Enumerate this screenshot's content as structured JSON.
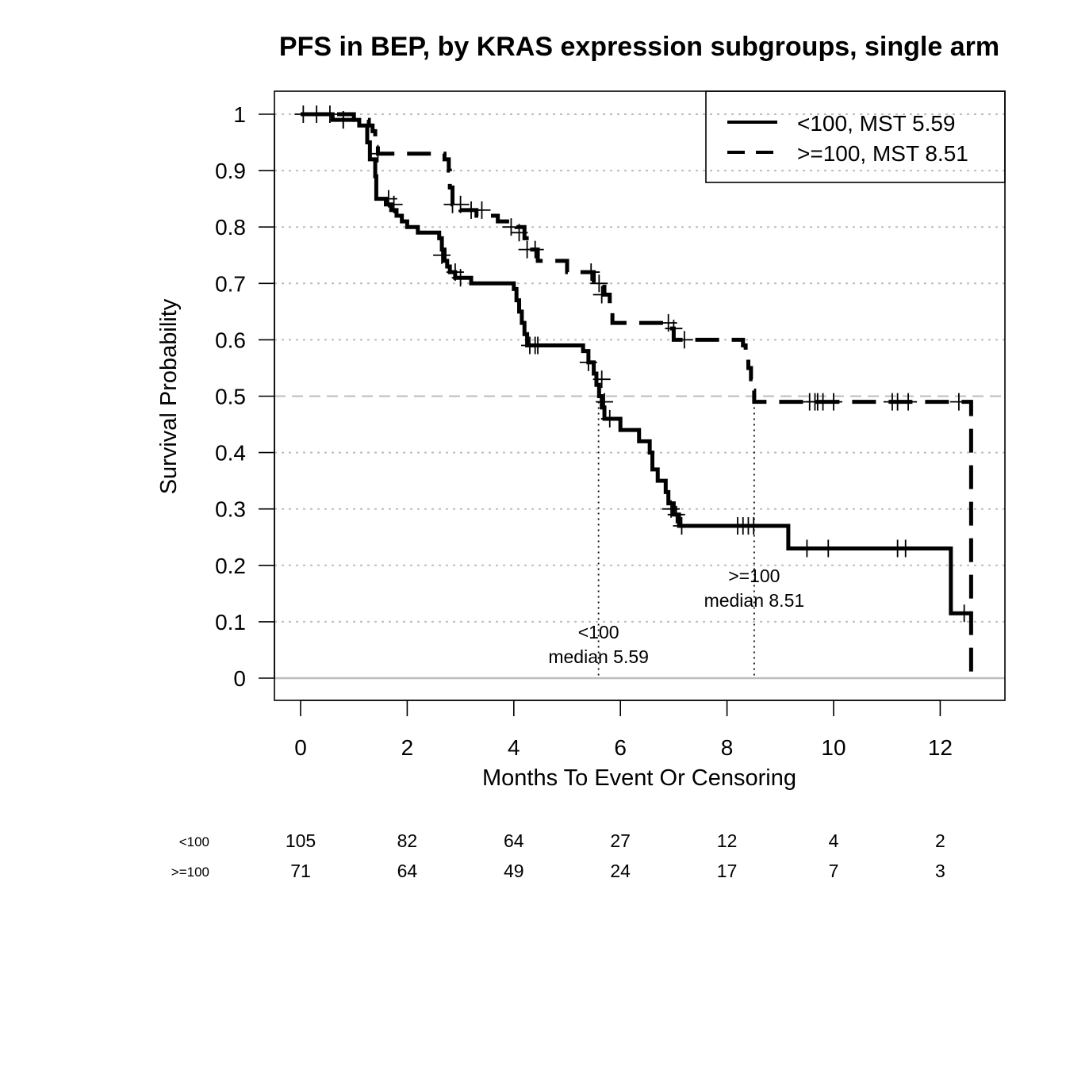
{
  "chart_data": {
    "type": "line",
    "title": "PFS in BEP, by KRAS expression subgroups, single arm",
    "xlabel": "Months To Event Or Censoring",
    "ylabel": "Survival Probability",
    "xlim": [
      -0.5,
      13.2
    ],
    "ylim": [
      -0.04,
      1.04
    ],
    "x_ticks": [
      0,
      2,
      4,
      6,
      8,
      10,
      12
    ],
    "y_ticks": [
      0,
      0.1,
      0.2,
      0.3,
      0.4,
      0.5,
      0.6,
      0.7,
      0.8,
      0.9,
      1
    ],
    "y_tick_labels": [
      "0",
      "0.1",
      "0.2",
      "0.3",
      "0.4",
      "0.5",
      "0.6",
      "0.7",
      "0.8",
      "0.9",
      "1"
    ],
    "grid": "horizontal dotted",
    "legend_position": "top-right",
    "series": [
      {
        "name": "<100, MST 5.59",
        "line_style": "solid",
        "steps": [
          [
            0,
            1.0
          ],
          [
            0.6,
            0.99
          ],
          [
            1.1,
            0.98
          ],
          [
            1.25,
            0.95
          ],
          [
            1.3,
            0.92
          ],
          [
            1.4,
            0.89
          ],
          [
            1.42,
            0.85
          ],
          [
            1.6,
            0.84
          ],
          [
            1.7,
            0.83
          ],
          [
            1.8,
            0.82
          ],
          [
            1.9,
            0.81
          ],
          [
            2.0,
            0.8
          ],
          [
            2.2,
            0.79
          ],
          [
            2.5,
            0.79
          ],
          [
            2.6,
            0.78
          ],
          [
            2.65,
            0.76
          ],
          [
            2.7,
            0.74
          ],
          [
            2.75,
            0.73
          ],
          [
            2.8,
            0.72
          ],
          [
            2.9,
            0.71
          ],
          [
            3.2,
            0.7
          ],
          [
            4.0,
            0.69
          ],
          [
            4.05,
            0.67
          ],
          [
            4.1,
            0.65
          ],
          [
            4.15,
            0.63
          ],
          [
            4.2,
            0.61
          ],
          [
            4.25,
            0.59
          ],
          [
            5.3,
            0.58
          ],
          [
            5.4,
            0.56
          ],
          [
            5.5,
            0.54
          ],
          [
            5.55,
            0.52
          ],
          [
            5.6,
            0.5
          ],
          [
            5.65,
            0.48
          ],
          [
            5.7,
            0.46
          ],
          [
            6.0,
            0.44
          ],
          [
            6.35,
            0.42
          ],
          [
            6.55,
            0.4
          ],
          [
            6.6,
            0.37
          ],
          [
            6.7,
            0.35
          ],
          [
            6.85,
            0.33
          ],
          [
            6.9,
            0.31
          ],
          [
            7.0,
            0.29
          ],
          [
            7.1,
            0.27
          ],
          [
            9.15,
            0.23
          ],
          [
            12.2,
            0.115
          ],
          [
            12.55,
            0.115
          ]
        ],
        "censored": [
          [
            0.05,
            1.0
          ],
          [
            0.3,
            1.0
          ],
          [
            0.55,
            1.0
          ],
          [
            0.8,
            0.99
          ],
          [
            1.65,
            0.85
          ],
          [
            1.75,
            0.84
          ],
          [
            2.65,
            0.75
          ],
          [
            2.9,
            0.72
          ],
          [
            3.0,
            0.71
          ],
          [
            4.3,
            0.59
          ],
          [
            4.4,
            0.59
          ],
          [
            4.45,
            0.59
          ],
          [
            5.4,
            0.56
          ],
          [
            5.65,
            0.53
          ],
          [
            5.7,
            0.49
          ],
          [
            5.8,
            0.46
          ],
          [
            6.95,
            0.3
          ],
          [
            7.05,
            0.29
          ],
          [
            7.15,
            0.27
          ],
          [
            8.2,
            0.27
          ],
          [
            8.3,
            0.27
          ],
          [
            8.4,
            0.27
          ],
          [
            8.5,
            0.27
          ],
          [
            9.5,
            0.23
          ],
          [
            9.9,
            0.23
          ],
          [
            11.2,
            0.23
          ],
          [
            11.35,
            0.23
          ],
          [
            12.45,
            0.115
          ]
        ]
      },
      {
        "name": ">=100, MST 8.51",
        "line_style": "dashed",
        "steps": [
          [
            0,
            1.0
          ],
          [
            1.0,
            0.99
          ],
          [
            1.28,
            0.98
          ],
          [
            1.35,
            0.97
          ],
          [
            1.4,
            0.96
          ],
          [
            1.45,
            0.93
          ],
          [
            2.7,
            0.92
          ],
          [
            2.78,
            0.9
          ],
          [
            2.8,
            0.87
          ],
          [
            2.85,
            0.84
          ],
          [
            3.0,
            0.83
          ],
          [
            3.3,
            0.82
          ],
          [
            3.7,
            0.81
          ],
          [
            4.05,
            0.8
          ],
          [
            4.2,
            0.78
          ],
          [
            4.3,
            0.76
          ],
          [
            4.45,
            0.74
          ],
          [
            5.0,
            0.72
          ],
          [
            5.5,
            0.7
          ],
          [
            5.7,
            0.68
          ],
          [
            5.8,
            0.66
          ],
          [
            5.85,
            0.63
          ],
          [
            6.9,
            0.62
          ],
          [
            7.0,
            0.6
          ],
          [
            8.3,
            0.59
          ],
          [
            8.35,
            0.57
          ],
          [
            8.4,
            0.55
          ],
          [
            8.45,
            0.53
          ],
          [
            8.5,
            0.51
          ],
          [
            8.51,
            0.49
          ],
          [
            12.58,
            0.0
          ]
        ],
        "censored": [
          [
            0.8,
            0.99
          ],
          [
            1.45,
            0.93
          ],
          [
            2.85,
            0.84
          ],
          [
            3.0,
            0.84
          ],
          [
            3.2,
            0.83
          ],
          [
            3.4,
            0.83
          ],
          [
            3.95,
            0.8
          ],
          [
            4.1,
            0.79
          ],
          [
            4.25,
            0.76
          ],
          [
            4.4,
            0.76
          ],
          [
            5.45,
            0.72
          ],
          [
            5.6,
            0.7
          ],
          [
            5.65,
            0.68
          ],
          [
            6.9,
            0.63
          ],
          [
            7.0,
            0.62
          ],
          [
            7.2,
            0.6
          ],
          [
            9.55,
            0.49
          ],
          [
            9.65,
            0.49
          ],
          [
            9.7,
            0.49
          ],
          [
            9.8,
            0.49
          ],
          [
            10.0,
            0.49
          ],
          [
            11.1,
            0.49
          ],
          [
            11.2,
            0.49
          ],
          [
            11.4,
            0.49
          ],
          [
            12.35,
            0.49
          ]
        ]
      }
    ],
    "median_lines": [
      {
        "x": 5.59,
        "label_top": "<100",
        "label_bottom": "median 5.59"
      },
      {
        "x": 8.51,
        "label_top": ">=100",
        "label_bottom": "median 8.51"
      }
    ],
    "risk_table": {
      "times": [
        0,
        2,
        4,
        6,
        8,
        10,
        12
      ],
      "rows": [
        {
          "label": "<100",
          "values": [
            "105",
            "82",
            "64",
            "27",
            "12",
            "4",
            "2"
          ]
        },
        {
          "label": ">=100",
          "values": [
            "71",
            "64",
            "49",
            "24",
            "17",
            "7",
            "3"
          ]
        }
      ]
    }
  }
}
